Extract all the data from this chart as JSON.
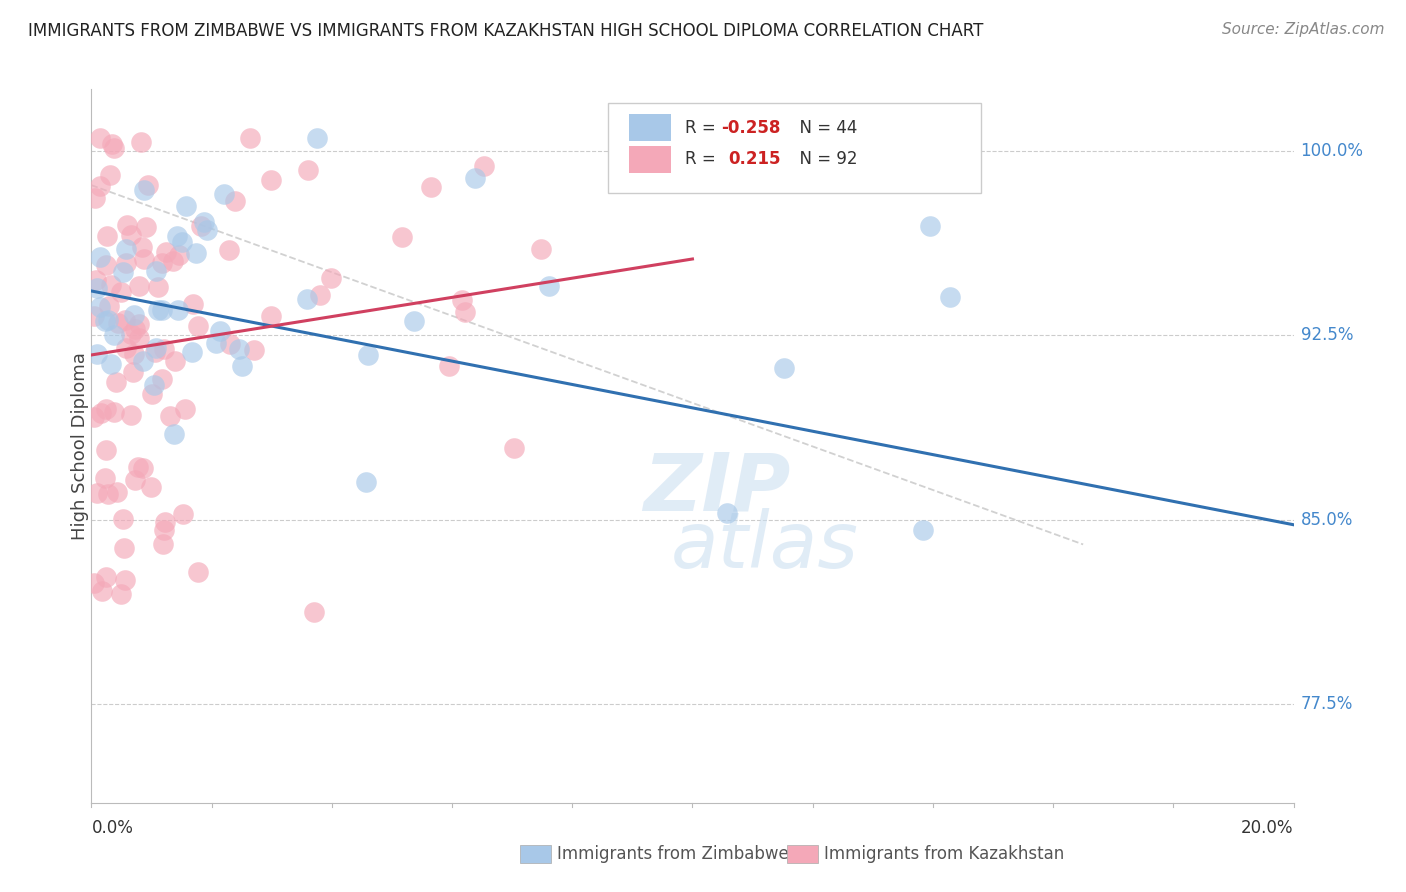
{
  "title": "IMMIGRANTS FROM ZIMBABWE VS IMMIGRANTS FROM KAZAKHSTAN HIGH SCHOOL DIPLOMA CORRELATION CHART",
  "source": "Source: ZipAtlas.com",
  "ylabel": "High School Diploma",
  "xlim": [
    0.0,
    0.2
  ],
  "ylim": [
    0.735,
    1.025
  ],
  "yticks": [
    0.775,
    0.85,
    0.925,
    1.0
  ],
  "ytick_labels": [
    "77.5%",
    "85.0%",
    "92.5%",
    "100.0%"
  ],
  "blue_color": "#a8c8e8",
  "pink_color": "#f4a8b8",
  "blue_line_color": "#3070b0",
  "pink_line_color": "#d04060",
  "ref_line_color": "#cccccc",
  "blue_scatter_seed": 10,
  "pink_scatter_seed": 20,
  "blue_line_x": [
    0.0,
    0.2
  ],
  "blue_line_y": [
    0.943,
    0.848
  ],
  "pink_line_x": [
    0.0,
    0.1
  ],
  "pink_line_y": [
    0.917,
    0.956
  ],
  "ref_line_x": [
    0.0,
    0.165
  ],
  "ref_line_y": [
    0.986,
    0.84
  ],
  "watermark_line1": "ZIP",
  "watermark_line2": "atlas",
  "legend_R_blue": "R = ",
  "legend_R_blue_val": "-0.258",
  "legend_N_blue": "N = 44",
  "legend_R_pink": "R =  ",
  "legend_R_pink_val": "0.215",
  "legend_N_pink": "N = 92"
}
